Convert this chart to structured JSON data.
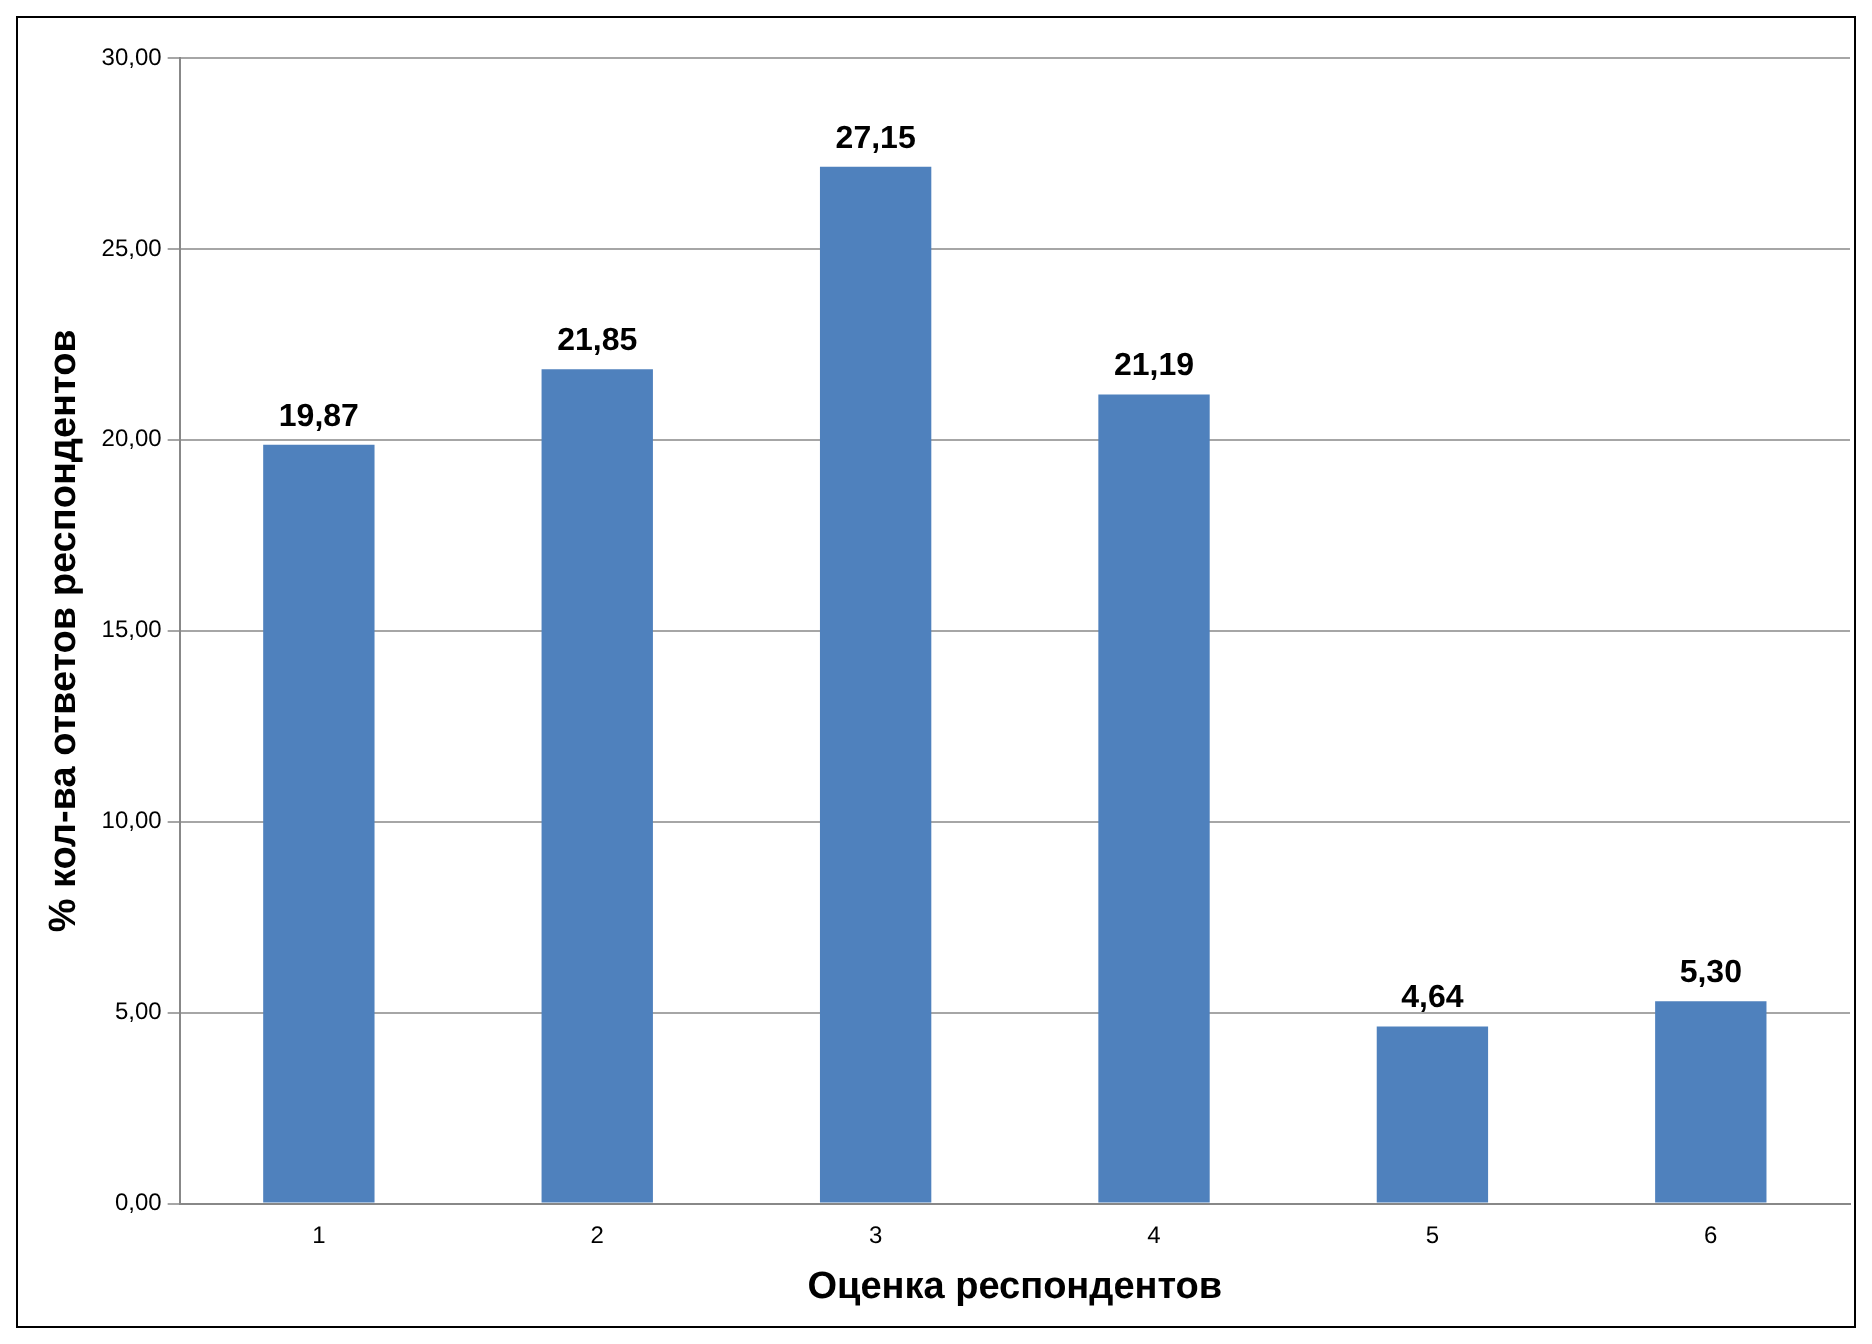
{
  "chart_data": {
    "type": "bar",
    "xlabel": "Оценка респондентов",
    "ylabel": "% кол-ва ответов респондентов",
    "categories": [
      "1",
      "2",
      "3",
      "4",
      "5",
      "6"
    ],
    "values": [
      19.87,
      21.85,
      27.15,
      21.19,
      4.64,
      5.3
    ],
    "value_labels": [
      "19,87",
      "21,85",
      "27,15",
      "21,19",
      "4,64",
      "5,30"
    ],
    "color": "#4f81bd",
    "ylim": [
      0,
      30
    ],
    "yticks": [
      {
        "value": 0,
        "label": "0,00"
      },
      {
        "value": 5,
        "label": "5,00"
      },
      {
        "value": 10,
        "label": "10,00"
      },
      {
        "value": 15,
        "label": "15,00"
      },
      {
        "value": 20,
        "label": "20,00"
      },
      {
        "value": 25,
        "label": "25,00"
      },
      {
        "value": 30,
        "label": "30,00"
      }
    ],
    "grid": "y",
    "legend": false
  }
}
